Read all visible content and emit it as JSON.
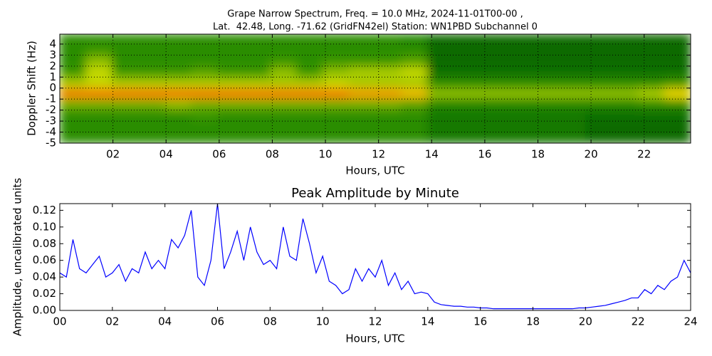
{
  "chart_data": [
    {
      "type": "heatmap",
      "title": "Grape Narrow Spectrum, Freq. = 10.0 MHz, 2024-11-01T00-00 ,",
      "subtitle": "Lat.  42.48, Long. -71.62 (GridFN42el) Station: WN1PBD Subchannel 0",
      "xlabel": "Hours, UTC",
      "ylabel": "Doppler Shift (Hz)",
      "xlim": [
        0,
        23.75
      ],
      "ylim": [
        -5,
        4.9
      ],
      "xticks": [
        {
          "value": 2,
          "label": "02"
        },
        {
          "value": 4,
          "label": "04"
        },
        {
          "value": 6,
          "label": "06"
        },
        {
          "value": 8,
          "label": "08"
        },
        {
          "value": 10,
          "label": "10"
        },
        {
          "value": 12,
          "label": "12"
        },
        {
          "value": 14,
          "label": "14"
        },
        {
          "value": 16,
          "label": "16"
        },
        {
          "value": 18,
          "label": "18"
        },
        {
          "value": 20,
          "label": "20"
        },
        {
          "value": 22,
          "label": "22"
        }
      ],
      "yticks": [
        4,
        3,
        2,
        1,
        0,
        -1,
        -2,
        -3,
        -4,
        -5
      ],
      "grid": true,
      "zlim": [
        0,
        1
      ],
      "colormap": [
        "#006400",
        "#2f9200",
        "#e8e800",
        "#ff2a00"
      ],
      "z": [
        [
          0.3,
          0.3,
          0.3,
          0.3,
          0.3,
          0.3,
          0.3,
          0.3,
          0.3,
          0.3,
          0.3,
          0.3,
          0.3,
          0.25,
          0.05,
          0.05,
          0.05,
          0.05,
          0.05,
          0.05,
          0.05,
          0.05,
          0.05,
          0.05
        ],
        [
          0.3,
          0.35,
          0.3,
          0.3,
          0.3,
          0.3,
          0.3,
          0.3,
          0.3,
          0.3,
          0.3,
          0.3,
          0.3,
          0.3,
          0.05,
          0.05,
          0.05,
          0.05,
          0.05,
          0.05,
          0.05,
          0.05,
          0.05,
          0.05
        ],
        [
          0.3,
          0.5,
          0.3,
          0.3,
          0.3,
          0.3,
          0.3,
          0.3,
          0.35,
          0.3,
          0.35,
          0.35,
          0.35,
          0.4,
          0.05,
          0.05,
          0.05,
          0.05,
          0.05,
          0.05,
          0.05,
          0.05,
          0.05,
          0.05
        ],
        [
          0.35,
          0.6,
          0.35,
          0.35,
          0.35,
          0.4,
          0.35,
          0.35,
          0.5,
          0.35,
          0.5,
          0.55,
          0.55,
          0.6,
          0.08,
          0.08,
          0.08,
          0.08,
          0.08,
          0.08,
          0.08,
          0.08,
          0.08,
          0.08
        ],
        [
          0.55,
          0.6,
          0.55,
          0.55,
          0.55,
          0.55,
          0.55,
          0.55,
          0.55,
          0.55,
          0.6,
          0.55,
          0.55,
          0.55,
          0.3,
          0.3,
          0.3,
          0.3,
          0.3,
          0.3,
          0.3,
          0.3,
          0.3,
          0.35
        ],
        [
          0.85,
          0.85,
          0.85,
          0.85,
          0.85,
          0.85,
          0.85,
          0.85,
          0.85,
          0.85,
          0.85,
          0.8,
          0.8,
          0.75,
          0.5,
          0.5,
          0.5,
          0.5,
          0.5,
          0.5,
          0.5,
          0.5,
          0.55,
          0.7
        ],
        [
          0.45,
          0.45,
          0.45,
          0.45,
          0.5,
          0.45,
          0.45,
          0.45,
          0.45,
          0.45,
          0.45,
          0.45,
          0.45,
          0.4,
          0.25,
          0.25,
          0.25,
          0.25,
          0.25,
          0.25,
          0.25,
          0.25,
          0.3,
          0.3
        ],
        [
          0.3,
          0.3,
          0.3,
          0.3,
          0.3,
          0.35,
          0.3,
          0.3,
          0.3,
          0.3,
          0.3,
          0.3,
          0.3,
          0.3,
          0.15,
          0.15,
          0.15,
          0.15,
          0.15,
          0.15,
          0.08,
          0.08,
          0.08,
          0.08
        ],
        [
          0.3,
          0.3,
          0.3,
          0.3,
          0.3,
          0.3,
          0.3,
          0.3,
          0.3,
          0.3,
          0.3,
          0.3,
          0.3,
          0.3,
          0.15,
          0.15,
          0.15,
          0.15,
          0.15,
          0.15,
          0.05,
          0.05,
          0.05,
          0.05
        ],
        [
          0.3,
          0.3,
          0.3,
          0.3,
          0.3,
          0.3,
          0.3,
          0.3,
          0.3,
          0.3,
          0.3,
          0.3,
          0.3,
          0.3,
          0.15,
          0.15,
          0.15,
          0.15,
          0.15,
          0.15,
          0.05,
          0.05,
          0.05,
          0.05
        ]
      ]
    },
    {
      "type": "line",
      "title": "Peak Amplitude by Minute",
      "xlabel": "Hours, UTC",
      "ylabel": "Amplitude, uncalibrated units",
      "xlim": [
        0,
        24
      ],
      "ylim": [
        0,
        0.128
      ],
      "xticks": [
        {
          "value": 0,
          "label": "00"
        },
        {
          "value": 2,
          "label": "02"
        },
        {
          "value": 4,
          "label": "04"
        },
        {
          "value": 6,
          "label": "06"
        },
        {
          "value": 8,
          "label": "08"
        },
        {
          "value": 10,
          "label": "10"
        },
        {
          "value": 12,
          "label": "12"
        },
        {
          "value": 14,
          "label": "14"
        },
        {
          "value": 16,
          "label": "16"
        },
        {
          "value": 18,
          "label": "18"
        },
        {
          "value": 20,
          "label": "20"
        },
        {
          "value": 22,
          "label": "22"
        },
        {
          "value": 24,
          "label": "24"
        }
      ],
      "yticks": [
        {
          "value": 0,
          "label": "0.00"
        },
        {
          "value": 0.02,
          "label": "0.02"
        },
        {
          "value": 0.04,
          "label": "0.04"
        },
        {
          "value": 0.06,
          "label": "0.06"
        },
        {
          "value": 0.08,
          "label": "0.08"
        },
        {
          "value": 0.1,
          "label": "0.10"
        },
        {
          "value": 0.12,
          "label": "0.12"
        }
      ],
      "grid": false,
      "color": "#0000ff",
      "x": [
        0,
        0.25,
        0.5,
        0.75,
        1,
        1.25,
        1.5,
        1.75,
        2,
        2.25,
        2.5,
        2.75,
        3,
        3.25,
        3.5,
        3.75,
        4,
        4.25,
        4.5,
        4.75,
        5,
        5.25,
        5.5,
        5.75,
        6,
        6.25,
        6.5,
        6.75,
        7,
        7.25,
        7.5,
        7.75,
        8,
        8.25,
        8.5,
        8.75,
        9,
        9.25,
        9.5,
        9.75,
        10,
        10.25,
        10.5,
        10.75,
        11,
        11.25,
        11.5,
        11.75,
        12,
        12.25,
        12.5,
        12.75,
        13,
        13.25,
        13.5,
        13.75,
        14,
        14.25,
        14.5,
        14.75,
        15,
        15.25,
        15.5,
        15.75,
        16,
        16.25,
        16.5,
        16.75,
        17,
        17.25,
        17.5,
        17.75,
        18,
        18.25,
        18.5,
        18.75,
        19,
        19.25,
        19.5,
        19.75,
        20,
        20.25,
        20.5,
        20.75,
        21,
        21.25,
        21.5,
        21.75,
        22,
        22.25,
        22.5,
        22.75,
        23,
        23.25,
        23.5,
        23.75,
        24
      ],
      "values": [
        0.045,
        0.04,
        0.085,
        0.05,
        0.045,
        0.055,
        0.065,
        0.04,
        0.045,
        0.055,
        0.035,
        0.05,
        0.045,
        0.07,
        0.05,
        0.06,
        0.05,
        0.085,
        0.075,
        0.09,
        0.12,
        0.04,
        0.03,
        0.06,
        0.128,
        0.05,
        0.07,
        0.095,
        0.06,
        0.1,
        0.07,
        0.055,
        0.06,
        0.05,
        0.1,
        0.065,
        0.06,
        0.11,
        0.08,
        0.045,
        0.065,
        0.035,
        0.03,
        0.02,
        0.025,
        0.05,
        0.035,
        0.05,
        0.04,
        0.06,
        0.03,
        0.045,
        0.025,
        0.035,
        0.02,
        0.022,
        0.02,
        0.01,
        0.007,
        0.006,
        0.005,
        0.005,
        0.004,
        0.004,
        0.003,
        0.003,
        0.002,
        0.002,
        0.002,
        0.002,
        0.002,
        0.002,
        0.002,
        0.002,
        0.002,
        0.002,
        0.002,
        0.002,
        0.002,
        0.003,
        0.003,
        0.004,
        0.005,
        0.006,
        0.008,
        0.01,
        0.012,
        0.015,
        0.015,
        0.025,
        0.02,
        0.03,
        0.025,
        0.035,
        0.04,
        0.06,
        0.045
      ]
    }
  ]
}
